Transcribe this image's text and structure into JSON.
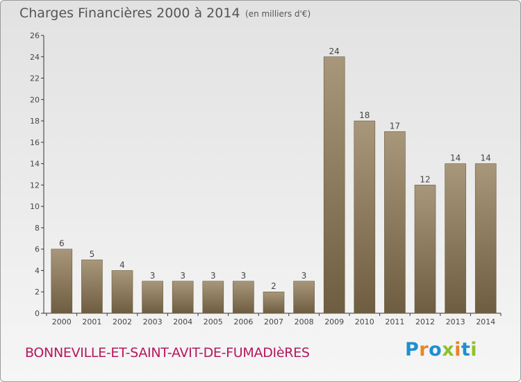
{
  "header": {
    "title": "Charges Financières 2000 à 2014",
    "subtitle": "(en milliers d'€)"
  },
  "footer": {
    "commune": "BONNEVILLE-ET-SAINT-AVIT-DE-FUMADIèRES",
    "logo_text": "Proxiti"
  },
  "colors": {
    "bar_top": "#a8977a",
    "bar_bottom": "#6e5d40",
    "commune": "#b5175b",
    "logo_letters": [
      "#1f8fd0",
      "#e8842a",
      "#1f8fd0",
      "#8fc02c",
      "#e8842a",
      "#1f8fd0",
      "#8fc02c"
    ]
  },
  "chart_data": {
    "type": "bar",
    "title": "Charges Financières 2000 à 2014",
    "subtitle": "(en milliers d'€)",
    "categories": [
      "2000",
      "2001",
      "2002",
      "2003",
      "2004",
      "2005",
      "2006",
      "2007",
      "2008",
      "2009",
      "2010",
      "2011",
      "2012",
      "2013",
      "2014"
    ],
    "values": [
      6,
      5,
      4,
      3,
      3,
      3,
      3,
      2,
      3,
      24,
      18,
      17,
      12,
      14,
      14
    ],
    "value_labels": [
      "6",
      "5",
      "4",
      "3",
      "3",
      "3",
      "3",
      "2",
      "3",
      "24",
      "18",
      "17",
      "12",
      "14",
      "14"
    ],
    "ylim": [
      0,
      26
    ],
    "y_ticks": [
      "0",
      "2",
      "4",
      "6",
      "8",
      "10",
      "12",
      "14",
      "16",
      "18",
      "20",
      "22",
      "24",
      "26"
    ],
    "grid": false,
    "legend": "none"
  }
}
